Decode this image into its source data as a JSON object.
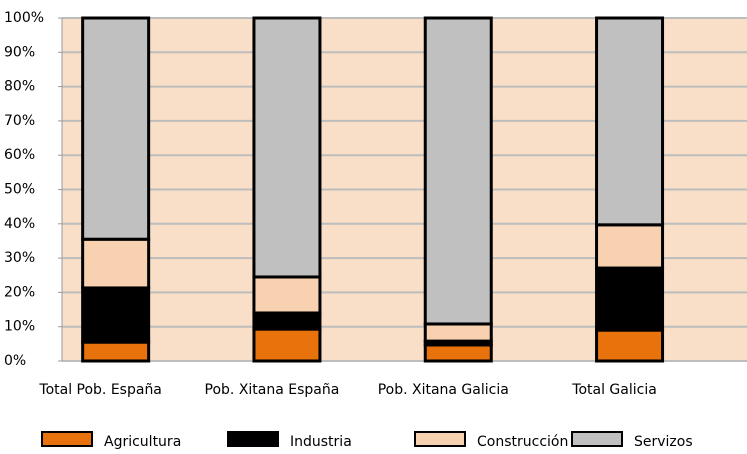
{
  "chart_data": {
    "type": "stacked-bar",
    "categories": [
      "Total Pob. España",
      "Pob. Xitana España",
      "Pob. Xitana Galicia",
      "Total Galicia"
    ],
    "series": [
      {
        "name": "Agricultura",
        "color": "#e8720c",
        "values": [
          5.5,
          9.3,
          4.7,
          9.0
        ]
      },
      {
        "name": "Industria",
        "color": "#000000",
        "values": [
          15.8,
          4.7,
          1.1,
          18.1
        ]
      },
      {
        "name": "Construcción",
        "color": "#f8d2b0",
        "values": [
          14.2,
          10.5,
          5.0,
          12.6
        ]
      },
      {
        "name": "Servizos",
        "color": "#c0c0c0",
        "values": [
          64.5,
          75.5,
          89.2,
          60.3
        ]
      }
    ],
    "ylim": [
      0,
      100
    ],
    "yticks": [
      {
        "value": 0,
        "label": "0%"
      },
      {
        "value": 10,
        "label": "10%"
      },
      {
        "value": 20,
        "label": "20%"
      },
      {
        "value": 30,
        "label": "30%"
      },
      {
        "value": 40,
        "label": "40%"
      },
      {
        "value": 50,
        "label": "50%"
      },
      {
        "value": 60,
        "label": "60%"
      },
      {
        "value": 70,
        "label": "70%"
      },
      {
        "value": 80,
        "label": "80%"
      },
      {
        "value": 90,
        "label": "90%"
      },
      {
        "value": 100,
        "label": "100%"
      }
    ],
    "grid": true,
    "legend": "bottom"
  }
}
